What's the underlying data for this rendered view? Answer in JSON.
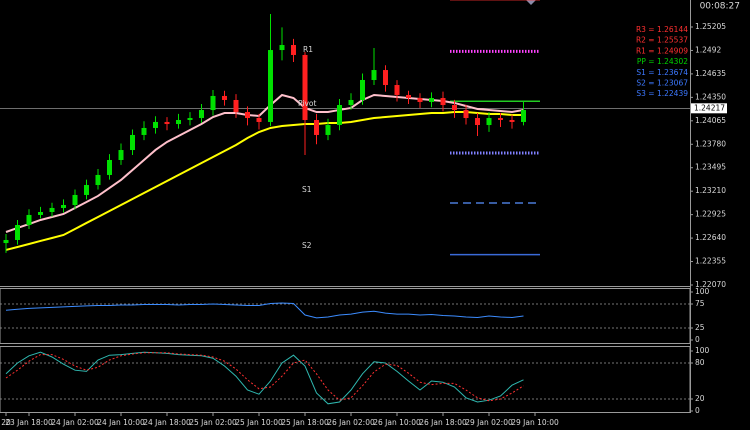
{
  "chart_data": [
    {
      "type": "candlestick",
      "timer": "00:08:27",
      "categories": [
        "20",
        null,
        "23 Jan 18:00",
        null,
        null,
        null,
        "24 Jan 02:00",
        null,
        null,
        null,
        "24 Jan 10:00",
        null,
        null,
        null,
        "24 Jan 18:00",
        null,
        null,
        null,
        "25 Jan 02:00",
        null,
        null,
        null,
        "25 Jan 10:00",
        null,
        null,
        null,
        "25 Jan 18:00",
        null,
        null,
        null,
        "26 Jan 02:00",
        null,
        null,
        null,
        "26 Jan 10:00",
        null,
        null,
        null,
        "26 Jan 18:00",
        null,
        null,
        null,
        "29 Jan 02:00",
        null,
        null,
        null,
        "29 Jan 10:00"
      ],
      "open": [
        1.2258,
        1.22617,
        1.22799,
        1.22921,
        1.22957,
        1.23006,
        1.23042,
        1.23164,
        1.23285,
        1.23407,
        1.23589,
        1.2371,
        1.23893,
        1.23978,
        1.24051,
        1.24026,
        1.24075,
        1.24099,
        1.24196,
        1.24367,
        1.24318,
        1.24172,
        1.24099,
        1.24051,
        1.24925,
        1.24986,
        1.24865,
        1.24075,
        1.23893,
        1.24014,
        1.24257,
        1.24318,
        1.24561,
        1.24682,
        1.245,
        1.24379,
        1.24342,
        1.24294,
        1.24342,
        1.24257,
        1.24196,
        1.24099,
        1.24014,
        1.24099,
        1.24075,
        1.24051,
        null
      ],
      "high": [
        1.2269,
        1.2286,
        1.2299,
        1.2302,
        1.2307,
        1.2311,
        1.2323,
        1.2335,
        1.2348,
        1.2366,
        1.2379,
        1.2396,
        1.2406,
        1.2412,
        1.2411,
        1.2415,
        1.2417,
        1.2427,
        1.2444,
        1.2443,
        1.2439,
        1.2424,
        1.2415,
        1.25363,
        1.252,
        1.2506,
        1.249,
        1.2415,
        1.2409,
        1.2433,
        1.244,
        1.2464,
        1.2495,
        1.2474,
        1.2456,
        1.2443,
        1.244,
        1.2441,
        1.2442,
        1.2432,
        1.2426,
        1.2416,
        1.2417,
        1.2416,
        1.2414,
        1.243,
        null
      ],
      "low": [
        1.2246,
        1.2256,
        1.2275,
        1.2288,
        1.229,
        1.2295,
        1.2299,
        1.2311,
        1.2323,
        1.2335,
        1.2353,
        1.2365,
        1.2383,
        1.2391,
        1.2395,
        1.2397,
        1.2401,
        1.2404,
        1.2413,
        1.2425,
        1.241,
        1.2401,
        1.2396,
        1.24,
        1.248,
        1.2478,
        1.2365,
        1.2378,
        1.2383,
        1.2395,
        1.242,
        1.2426,
        1.245,
        1.2442,
        1.243,
        1.2427,
        1.2422,
        1.2423,
        1.2418,
        1.241,
        1.2402,
        1.2388,
        1.2393,
        1.2399,
        1.2397,
        1.2401,
        null
      ],
      "close": [
        1.22617,
        1.22799,
        1.22921,
        1.22957,
        1.23006,
        1.23042,
        1.23164,
        1.23285,
        1.23407,
        1.23589,
        1.2371,
        1.23893,
        1.23978,
        1.24051,
        1.24026,
        1.24075,
        1.24099,
        1.24196,
        1.24367,
        1.24318,
        1.24172,
        1.24099,
        1.24051,
        1.24925,
        1.24986,
        1.24865,
        1.24075,
        1.23893,
        1.24014,
        1.24257,
        1.24318,
        1.24561,
        1.24682,
        1.245,
        1.24379,
        1.24342,
        1.24294,
        1.24342,
        1.24257,
        1.24196,
        1.24099,
        1.24014,
        1.24099,
        1.24075,
        1.24051,
        1.24196,
        null
      ],
      "up_color": "#00e000",
      "down_color": "#ff2020",
      "series": [
        {
          "color": "#ffc0cb",
          "values": [
            1.22714,
            1.22763,
            1.22811,
            1.2286,
            1.22896,
            1.22933,
            1.23006,
            1.23079,
            1.23152,
            1.23249,
            1.23346,
            1.23468,
            1.23589,
            1.23711,
            1.23808,
            1.23881,
            1.23954,
            1.24026,
            1.24111,
            1.2416,
            1.2416,
            1.24136,
            1.24124,
            1.24257,
            1.24379,
            1.24342,
            1.24221,
            1.24172,
            1.24172,
            1.24197,
            1.24221,
            1.24318,
            1.24379,
            1.24367,
            1.24354,
            1.24342,
            1.2433,
            1.24318,
            1.24306,
            1.24282,
            1.24245,
            1.24209,
            1.24197,
            1.24184,
            1.24172,
            1.24197,
            null
          ]
        },
        {
          "color": "#ffff00",
          "values": [
            1.22496,
            1.22532,
            1.22568,
            1.22605,
            1.22641,
            1.22678,
            1.22751,
            1.22824,
            1.22896,
            1.22969,
            1.23042,
            1.23115,
            1.23188,
            1.23261,
            1.23334,
            1.23407,
            1.2348,
            1.23553,
            1.23625,
            1.23698,
            1.23771,
            1.23856,
            1.23929,
            1.23978,
            1.24002,
            1.24014,
            1.24026,
            1.24026,
            1.24039,
            1.24039,
            1.24051,
            1.24075,
            1.24099,
            1.24111,
            1.24124,
            1.24136,
            1.24148,
            1.2416,
            1.2416,
            1.24172,
            1.24172,
            1.2416,
            1.24148,
            1.24148,
            1.24136,
            1.24136,
            null
          ]
        }
      ],
      "ylim": [
        1.2207,
        1.25533
      ],
      "yticks": [
        1.25205,
        1.2492,
        1.24635,
        {
          "value": 1.2435,
          "label": "1.24350"
        },
        1.24065,
        {
          "value": 1.2378,
          "label": "1.23780"
        },
        1.23495,
        {
          "value": 1.2321,
          "label": "1.23210"
        },
        1.22925,
        {
          "value": 1.2264,
          "label": "1.22640"
        },
        1.22355,
        {
          "value": 1.2207,
          "label": "1.22070"
        }
      ],
      "current_price": 1.24217,
      "pivot_levels": [
        {
          "label": "R3 = 1.26144",
          "value": 1.26144,
          "color": "#ff3030",
          "line_color": "#ff3030",
          "style": "solid"
        },
        {
          "label": "R2 = 1.25537",
          "value": 1.25537,
          "color": "#ff3030",
          "line_color": "#ff3030",
          "style": "solid"
        },
        {
          "label": "R1 = 1.24909",
          "value": 1.24909,
          "color": "#ff3030",
          "line_color": "#ff44ff",
          "style": "dotted"
        },
        {
          "label": "PP = 1.24302",
          "value": 1.24302,
          "color": "#00d000",
          "line_color": "#22cc22",
          "style": "solid"
        },
        {
          "label": "S1 = 1.23674",
          "value": 1.23674,
          "color": "#3c78ff",
          "line_color": "#8080ff",
          "style": "dotted"
        },
        {
          "label": "S2 = 1.23067",
          "value": 1.23067,
          "color": "#3c78ff",
          "line_color": "#4a7ad8",
          "style": "dashed"
        },
        {
          "label": "S3 = 1.22439",
          "value": 1.22439,
          "color": "#3c78ff",
          "line_color": "#3a6ad8",
          "style": "solid"
        }
      ],
      "annotations": [
        "R1",
        "Pivot",
        "S1",
        "S2"
      ]
    },
    {
      "type": "line",
      "series": [
        {
          "color": "#3c8cff",
          "values": [
            62,
            64,
            66,
            67,
            68,
            69,
            70,
            71,
            72,
            72,
            73,
            73,
            74,
            74,
            74,
            73,
            74,
            74,
            75,
            74,
            73,
            72,
            72,
            76,
            77,
            76,
            52,
            46,
            48,
            52,
            54,
            58,
            60,
            56,
            54,
            54,
            52,
            53,
            51,
            50,
            48,
            47,
            50,
            48,
            47,
            50,
            null
          ]
        }
      ],
      "ylim": [
        0,
        100
      ],
      "yticks": [
        0,
        25,
        75,
        100
      ],
      "levels": [
        25,
        75
      ]
    },
    {
      "type": "line",
      "series": [
        {
          "color": "#2fb8b0",
          "style": "solid",
          "values": [
            62,
            80,
            92,
            98,
            90,
            78,
            68,
            66,
            85,
            93,
            94,
            96,
            98,
            97,
            96,
            94,
            93,
            92,
            88,
            75,
            58,
            35,
            28,
            50,
            80,
            93,
            75,
            30,
            12,
            15,
            35,
            62,
            82,
            80,
            66,
            50,
            35,
            50,
            48,
            40,
            22,
            15,
            18,
            25,
            43,
            52,
            null
          ]
        },
        {
          "color": "#ff3030",
          "style": "dotted",
          "values": [
            55,
            68,
            83,
            94,
            94,
            86,
            75,
            68,
            73,
            85,
            92,
            95,
            97,
            97,
            97,
            95,
            94,
            93,
            90,
            83,
            70,
            52,
            37,
            40,
            58,
            80,
            85,
            62,
            35,
            18,
            22,
            42,
            65,
            78,
            76,
            63,
            48,
            44,
            46,
            46,
            35,
            22,
            17,
            20,
            30,
            42,
            null
          ]
        }
      ],
      "ylim": [
        0,
        100
      ],
      "yticks": [
        0,
        20,
        80,
        100
      ],
      "levels": [
        20,
        80
      ]
    }
  ]
}
